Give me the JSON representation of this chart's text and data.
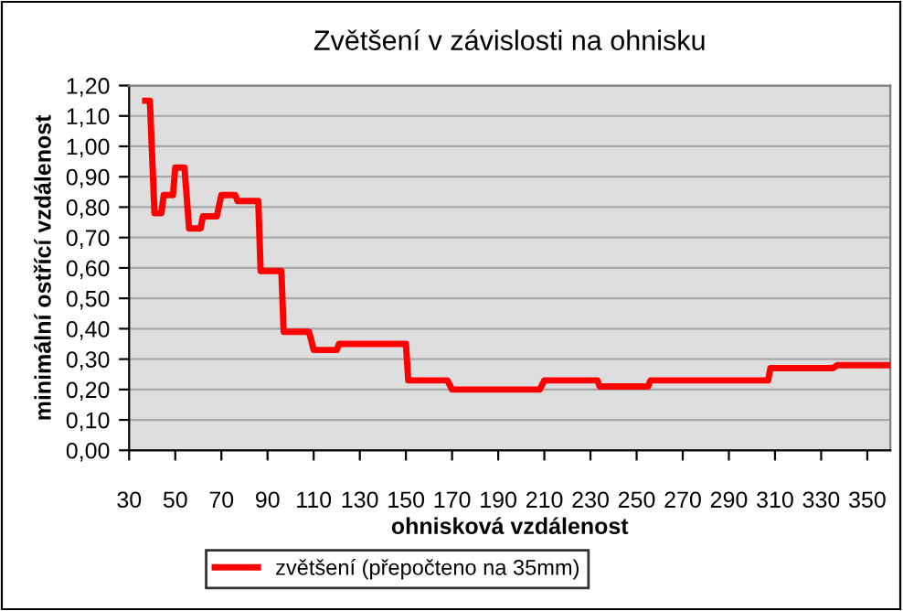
{
  "chart_data": {
    "type": "line",
    "title": "Zvětšení v závislosti na ohnisku",
    "xlabel": "ohnisková vzdálenost",
    "ylabel": "minimální ostřící vzdálenost",
    "series": [
      {
        "name": "zvětšení (přepočteno na 35mm)",
        "color": "#ff0000",
        "x": [
          37,
          39,
          41,
          44,
          45,
          49,
          50,
          54,
          56,
          61,
          62,
          68,
          70,
          76,
          77,
          86,
          87,
          96,
          97,
          108,
          110,
          120,
          121,
          150,
          151,
          168,
          170,
          208,
          210,
          233,
          234,
          255,
          256,
          307,
          308,
          335,
          337,
          360
        ],
        "values": [
          1.15,
          1.15,
          0.78,
          0.78,
          0.84,
          0.84,
          0.93,
          0.93,
          0.73,
          0.73,
          0.77,
          0.77,
          0.84,
          0.84,
          0.82,
          0.82,
          0.59,
          0.59,
          0.39,
          0.39,
          0.33,
          0.33,
          0.35,
          0.35,
          0.23,
          0.23,
          0.2,
          0.2,
          0.23,
          0.23,
          0.21,
          0.21,
          0.23,
          0.23,
          0.27,
          0.27,
          0.28,
          0.28
        ]
      }
    ],
    "xlim": [
      30,
      360
    ],
    "xticks": [
      30,
      50,
      70,
      90,
      110,
      130,
      150,
      170,
      190,
      210,
      230,
      250,
      270,
      290,
      310,
      330,
      350
    ],
    "ylim": [
      0,
      1.2
    ],
    "yticks": [
      {
        "value": 0,
        "label": "0,00"
      },
      {
        "value": 0.1,
        "label": "0,10"
      },
      {
        "value": 0.2,
        "label": "0,20"
      },
      {
        "value": 0.3,
        "label": "0,30"
      },
      {
        "value": 0.4,
        "label": "0,40"
      },
      {
        "value": 0.5,
        "label": "0,50"
      },
      {
        "value": 0.6,
        "label": "0,60"
      },
      {
        "value": 0.7,
        "label": "0,70"
      },
      {
        "value": 0.8,
        "label": "0,80"
      },
      {
        "value": 0.9,
        "label": "0,90"
      },
      {
        "value": 1.0,
        "label": "1,00"
      },
      {
        "value": 1.1,
        "label": "1,10"
      },
      {
        "value": 1.2,
        "label": "1,20"
      }
    ],
    "grid": "y",
    "legend": "bottom",
    "marker": "none",
    "line_style": "solid"
  }
}
